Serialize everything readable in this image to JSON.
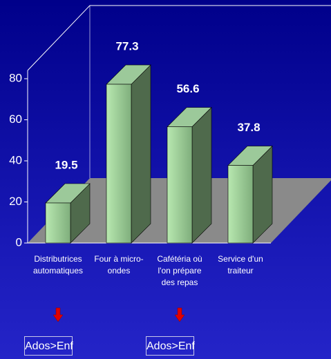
{
  "chart_data": {
    "type": "bar3d",
    "categories": [
      "Distributrices\nautomatiques",
      "Four à micro-\nondes",
      "Cafétéria où\nl'on prépare\ndes repas",
      "Service d'un\ntraiteur"
    ],
    "values": [
      19.5,
      77.3,
      56.6,
      37.8
    ],
    "ylim": [
      0,
      80
    ],
    "yticks": [
      0,
      20,
      40,
      60,
      80
    ],
    "colors": {
      "front": "#b8e8b0",
      "side": "#4f6a4c",
      "top": "#9cc99a",
      "floor": "#8a8a8a"
    },
    "annotations": [
      {
        "category": 0,
        "text": "Ados>Enf"
      },
      {
        "category": 2,
        "text": "Ados>Enf"
      }
    ]
  }
}
